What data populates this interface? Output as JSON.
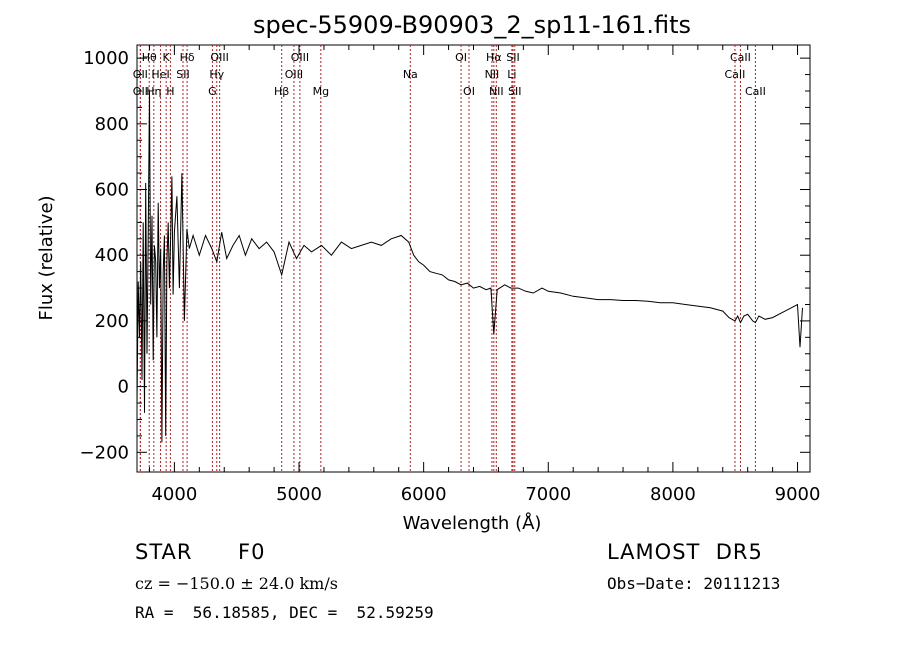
{
  "chart_data": {
    "type": "line",
    "title": "spec-55909-B90903_2_sp11-161.fits",
    "xlabel": "Wavelength (Å)",
    "ylabel": "Flux (relative)",
    "xlim": [
      3700,
      9100
    ],
    "ylim": [
      -260,
      1040
    ],
    "xticks": [
      4000,
      5000,
      6000,
      7000,
      8000,
      9000
    ],
    "yticks": [
      -200,
      0,
      200,
      400,
      600,
      800,
      1000
    ],
    "grid": false,
    "series": [
      {
        "x": [
          3700,
          3710,
          3720,
          3730,
          3740,
          3750,
          3760,
          3770,
          3780,
          3790,
          3800,
          3810,
          3820,
          3830,
          3840,
          3850,
          3860,
          3870,
          3880,
          3890,
          3900,
          3910,
          3920,
          3930,
          3940,
          3950,
          3960,
          3970,
          3980,
          3990,
          4000,
          4020,
          4040,
          4060,
          4080,
          4100,
          4120,
          4150,
          4200,
          4250,
          4300,
          4340,
          4380,
          4420,
          4470,
          4520,
          4570,
          4620,
          4680,
          4740,
          4800,
          4861,
          4920,
          4980,
          5040,
          5100,
          5180,
          5260,
          5340,
          5420,
          5500,
          5580,
          5660,
          5740,
          5820,
          5880,
          5920,
          5960,
          6000,
          6050,
          6100,
          6150,
          6200,
          6250,
          6300,
          6350,
          6400,
          6450,
          6500,
          6540,
          6563,
          6590,
          6650,
          6700,
          6760,
          6820,
          6880,
          6950,
          7000,
          7100,
          7200,
          7300,
          7400,
          7500,
          7600,
          7700,
          7800,
          7900,
          8000,
          8100,
          8200,
          8300,
          8400,
          8450,
          8498,
          8520,
          8542,
          8570,
          8600,
          8640,
          8662,
          8690,
          8740,
          8800,
          8850,
          8900,
          8950,
          9000,
          9020,
          9040
        ],
        "y": [
          -60,
          320,
          150,
          380,
          20,
          500,
          -80,
          620,
          100,
          460,
          900,
          250,
          520,
          80,
          430,
          380,
          150,
          560,
          300,
          420,
          -170,
          350,
          460,
          -150,
          380,
          500,
          300,
          460,
          640,
          280,
          470,
          580,
          300,
          650,
          200,
          480,
          420,
          460,
          400,
          460,
          420,
          380,
          470,
          390,
          430,
          460,
          400,
          450,
          420,
          440,
          410,
          340,
          440,
          390,
          430,
          410,
          430,
          400,
          440,
          420,
          430,
          440,
          430,
          450,
          460,
          440,
          400,
          380,
          370,
          350,
          345,
          340,
          325,
          320,
          310,
          315,
          300,
          305,
          295,
          300,
          160,
          295,
          310,
          300,
          300,
          290,
          285,
          300,
          290,
          285,
          275,
          270,
          265,
          265,
          262,
          262,
          260,
          255,
          255,
          250,
          245,
          240,
          230,
          210,
          200,
          215,
          195,
          215,
          220,
          200,
          195,
          215,
          205,
          210,
          220,
          230,
          240,
          250,
          120,
          240
        ]
      }
    ],
    "lines": [
      {
        "label": "Hθ",
        "x": 3798,
        "row": 1
      },
      {
        "label": "OII",
        "x": 3727,
        "row": 2
      },
      {
        "label": "OII",
        "x": 3727,
        "row": 3
      },
      {
        "label": "Hη",
        "x": 3835,
        "row": 3
      },
      {
        "label": "K",
        "x": 3934,
        "row": 1
      },
      {
        "label": "HeI",
        "x": 3889,
        "row": 2
      },
      {
        "label": "H",
        "x": 3968,
        "row": 3
      },
      {
        "label": "Hδ",
        "x": 4102,
        "row": 1
      },
      {
        "label": "SII",
        "x": 4069,
        "row": 2
      },
      {
        "label": "OIII",
        "x": 4363,
        "row": 1
      },
      {
        "label": "Hγ",
        "x": 4340,
        "row": 2
      },
      {
        "label": "G",
        "x": 4305,
        "row": 3
      },
      {
        "label": "Hβ",
        "x": 4861,
        "row": 3
      },
      {
        "label": "OIII",
        "x": 5007,
        "row": 1
      },
      {
        "label": "OIII",
        "x": 4959,
        "row": 2
      },
      {
        "label": "Mg",
        "x": 5175,
        "row": 3
      },
      {
        "label": "Na",
        "x": 5893,
        "row": 2
      },
      {
        "label": "OI",
        "x": 6300,
        "row": 1
      },
      {
        "label": "OI",
        "x": 6364,
        "row": 3
      },
      {
        "label": "Hα",
        "x": 6563,
        "row": 1
      },
      {
        "label": "NII",
        "x": 6548,
        "row": 2
      },
      {
        "label": "NII",
        "x": 6583,
        "row": 3
      },
      {
        "label": "SII",
        "x": 6717,
        "row": 1
      },
      {
        "label": "Li",
        "x": 6708,
        "row": 2
      },
      {
        "label": "SII",
        "x": 6731,
        "row": 3
      },
      {
        "label": "CaII",
        "x": 8542,
        "row": 1
      },
      {
        "label": "CaII",
        "x": 8498,
        "row": 2
      },
      {
        "label": "CaII",
        "x": 8662,
        "row": 3
      }
    ]
  },
  "info": {
    "class": "STAR",
    "subclass": "F0",
    "survey": "LAMOST  DR5",
    "cz": "cz = −150.0 ± 24.0 km/s",
    "obs_date": "Obs−Date: 20111213",
    "radec": "RA =  56.18585, DEC =  52.59259"
  },
  "colors": {
    "spectrum": "#000000",
    "line_markers": "#b22222",
    "axes": "#000000"
  }
}
